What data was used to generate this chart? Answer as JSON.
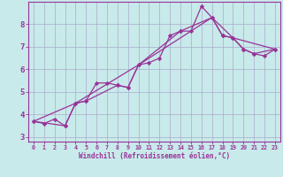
{
  "background_color": "#c8eaea",
  "grid_color": "#aaaacc",
  "line_color": "#993399",
  "marker_color": "#993399",
  "xlabel": "Windchill (Refroidissement éolien,°C)",
  "xlabel_color": "#993399",
  "tick_color": "#993399",
  "xlim": [
    -0.5,
    23.5
  ],
  "ylim": [
    2.8,
    9.0
  ],
  "yticks": [
    3,
    4,
    5,
    6,
    7,
    8
  ],
  "xticks": [
    0,
    1,
    2,
    3,
    4,
    5,
    6,
    7,
    8,
    9,
    10,
    11,
    12,
    13,
    14,
    15,
    16,
    17,
    18,
    19,
    20,
    21,
    22,
    23
  ],
  "line1_x": [
    0,
    1,
    2,
    3,
    4,
    5,
    6,
    7,
    8,
    9,
    10,
    11,
    12,
    13,
    14,
    15,
    16,
    17,
    18,
    19,
    20,
    21,
    22,
    23
  ],
  "line1_y": [
    3.7,
    3.6,
    3.8,
    3.5,
    4.5,
    4.6,
    5.4,
    5.4,
    5.3,
    5.2,
    6.2,
    6.3,
    6.5,
    7.5,
    7.7,
    7.7,
    8.8,
    8.3,
    7.5,
    7.4,
    6.9,
    6.7,
    6.6,
    6.9
  ],
  "line2_x": [
    0,
    3,
    4,
    5,
    8,
    9,
    10,
    14,
    17,
    18,
    19,
    20,
    21,
    23
  ],
  "line2_y": [
    3.7,
    3.5,
    4.5,
    4.6,
    5.3,
    5.2,
    6.2,
    7.7,
    8.3,
    7.5,
    7.4,
    6.9,
    6.7,
    6.9
  ],
  "line3_x": [
    0,
    4,
    10,
    17,
    19,
    23
  ],
  "line3_y": [
    3.7,
    4.5,
    6.2,
    8.3,
    7.4,
    6.9
  ]
}
